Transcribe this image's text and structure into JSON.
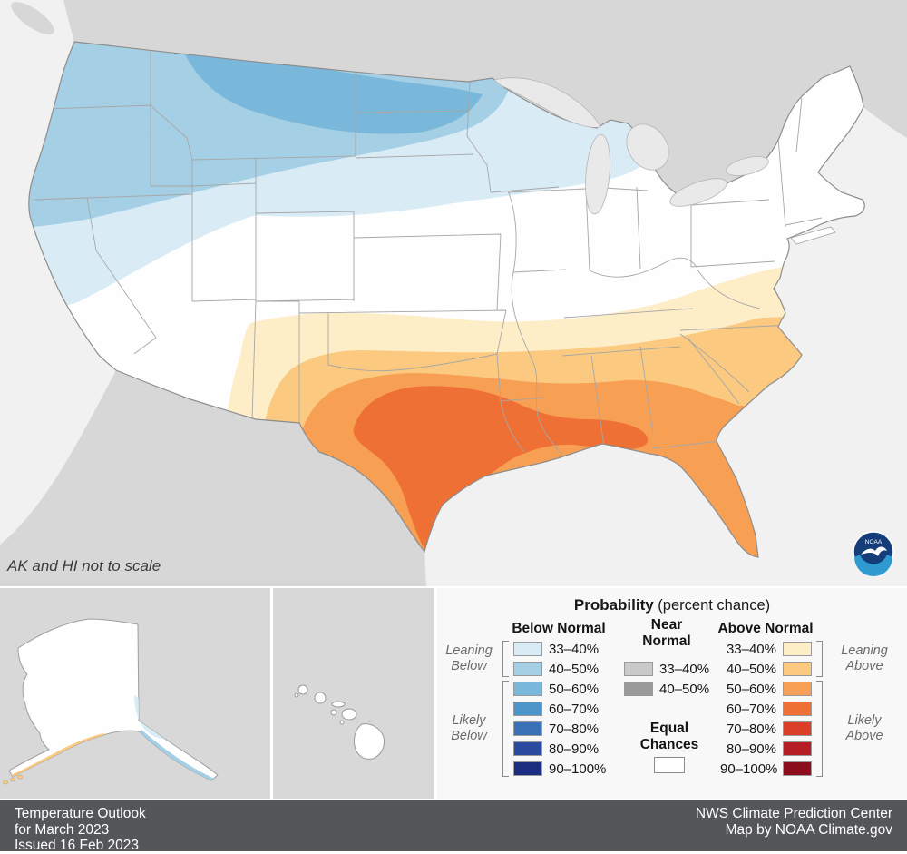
{
  "map": {
    "note": "AK and HI not to scale",
    "noaa": "NOAA"
  },
  "colors": {
    "ocean": "#f1f1f1",
    "foreign_land": "#d7d7d7",
    "us_fill": "#fefefe",
    "lake": "#e9e9e9",
    "panel_gray": "#d8d8d8",
    "legend_bg": "#f8f8f8",
    "footer_bg": "#54565a"
  },
  "legend": {
    "title_bold": "Probability",
    "title_rest": " (percent chance)",
    "below_header": "Below Normal",
    "near_header": "Near\nNormal",
    "above_header": "Above Normal",
    "leaning_below": "Leaning\nBelow",
    "likely_below": "Likely\nBelow",
    "leaning_above": "Leaning\nAbove",
    "likely_above": "Likely\nAbove",
    "equal_label": "Equal\nChances",
    "equal_color": "#ffffff",
    "below_rows": [
      {
        "range": "33–40%",
        "color": "#d9ecf6"
      },
      {
        "range": "40–50%",
        "color": "#a5cfe4"
      },
      {
        "range": "50–60%",
        "color": "#79b8da"
      },
      {
        "range": "60–70%",
        "color": "#4f94c8"
      },
      {
        "range": "70–80%",
        "color": "#3a70b6"
      },
      {
        "range": "80–90%",
        "color": "#2b4ba0"
      },
      {
        "range": "90–100%",
        "color": "#1c2d80"
      }
    ],
    "near_rows": [
      {
        "range": "33–40%",
        "color": "#c9c9c9"
      },
      {
        "range": "40–50%",
        "color": "#9a9a9a"
      }
    ],
    "above_rows": [
      {
        "range": "33–40%",
        "color": "#fdeec8"
      },
      {
        "range": "40–50%",
        "color": "#fbca80"
      },
      {
        "range": "50–60%",
        "color": "#f79f53"
      },
      {
        "range": "60–70%",
        "color": "#ef7034"
      },
      {
        "range": "70–80%",
        "color": "#dc3f28"
      },
      {
        "range": "80–90%",
        "color": "#b51f24"
      },
      {
        "range": "90–100%",
        "color": "#8c0e1c"
      }
    ]
  },
  "footer": {
    "left_lines": [
      "Temperature Outlook",
      "for March 2023",
      "Issued 16 Feb 2023"
    ],
    "right_lines": [
      "NWS Climate Prediction Center",
      "Map by NOAA Climate.gov"
    ]
  }
}
